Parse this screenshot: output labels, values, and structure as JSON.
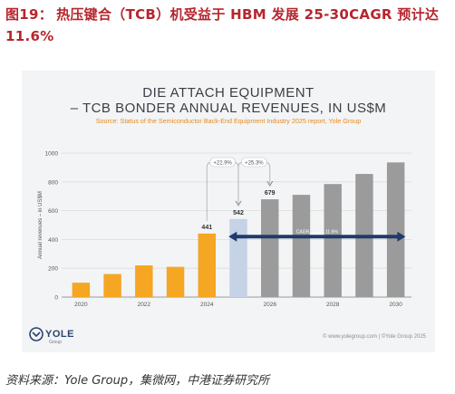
{
  "figure": {
    "number": "图19：",
    "title": "热压键合（TCB）机受益于 HBM 发展 25-30CAGR 预计达 11.6%"
  },
  "panel": {
    "title_line1": "DIE ATTACH EQUIPMENT",
    "title_line2": "– TCB BONDER ANNUAL REVENUES, IN US$M",
    "source": "Source: Status of the Semiconductor Back-End Equipment Industry 2025 report, Yole Group",
    "logo_name": "YOLE",
    "logo_sub": "Group",
    "copyright": "© www.yolegroup.com | ©Yole Group 2025"
  },
  "footer": {
    "source": "资料来源：Yole Group，集微网，中港证券研究所"
  },
  "chart_data": {
    "type": "bar",
    "ylabel": "Annual revenues – in US$M",
    "ylim": [
      0,
      1000
    ],
    "yticks": [
      0,
      200,
      400,
      600,
      800,
      1000
    ],
    "xtick_labels": [
      "2020",
      "2022",
      "2024",
      "2026",
      "2028",
      "2030"
    ],
    "categories": [
      "2020",
      "2021",
      "2022",
      "2023",
      "2024",
      "2025",
      "2026",
      "2027",
      "2028",
      "2029",
      "2030"
    ],
    "values": [
      100,
      160,
      220,
      210,
      441,
      542,
      679,
      710,
      785,
      855,
      935
    ],
    "bar_colors": [
      "#f5a623",
      "#f5a623",
      "#f5a623",
      "#f5a623",
      "#f5a623",
      "#c6d2e6",
      "#9b9b9b",
      "#9b9b9b",
      "#9b9b9b",
      "#9b9b9b",
      "#9b9b9b"
    ],
    "data_labels": [
      {
        "category": "2024",
        "text": "441"
      },
      {
        "category": "2025",
        "text": "542"
      },
      {
        "category": "2026",
        "text": "679"
      }
    ],
    "growth_annotations": [
      {
        "from": "2024",
        "to": "2025",
        "text": "+22.9%"
      },
      {
        "from": "2025",
        "to": "2026",
        "text": "+25.3%"
      }
    ],
    "cagr": {
      "from": "2025",
      "to": "2030",
      "label": "CAGR",
      "period": "2025-2030",
      "value": "11.6%",
      "color": "#1f3a6b"
    },
    "grid": "horizontal"
  }
}
